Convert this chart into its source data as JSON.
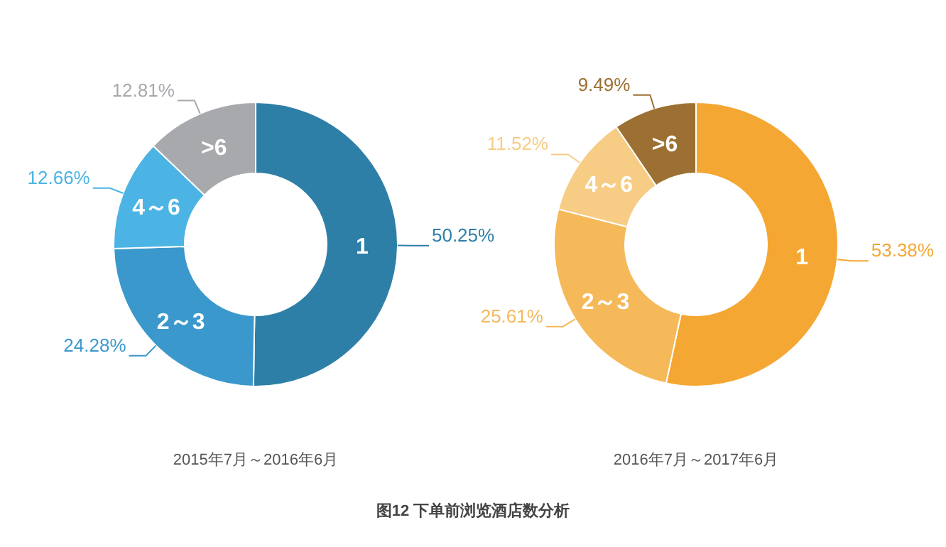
{
  "chart_data": [
    {
      "type": "donut",
      "subtitle": "2015年7月～2016年6月",
      "categories": [
        "1",
        "2～3",
        "4～6",
        ">6"
      ],
      "values": [
        50.25,
        24.28,
        12.66,
        12.81
      ],
      "value_labels": [
        "50.25%",
        "24.28%",
        "12.66%",
        "12.81%"
      ],
      "colors": [
        "#2e7fa7",
        "#3b98cd",
        "#4bb4e4",
        "#a8a9ad"
      ],
      "annotations": [
        "图12 下单前浏览酒店数分析"
      ]
    },
    {
      "type": "donut",
      "subtitle": "2016年7月～2017年6月",
      "categories": [
        "1",
        "2～3",
        "4～6",
        ">6"
      ],
      "values": [
        53.38,
        25.61,
        11.52,
        9.49
      ],
      "value_labels": [
        "53.38%",
        "25.61%",
        "11.52%",
        "9.49%"
      ],
      "colors": [
        "#f5a733",
        "#f5b95a",
        "#f7cd85",
        "#9c6f32"
      ]
    }
  ]
}
